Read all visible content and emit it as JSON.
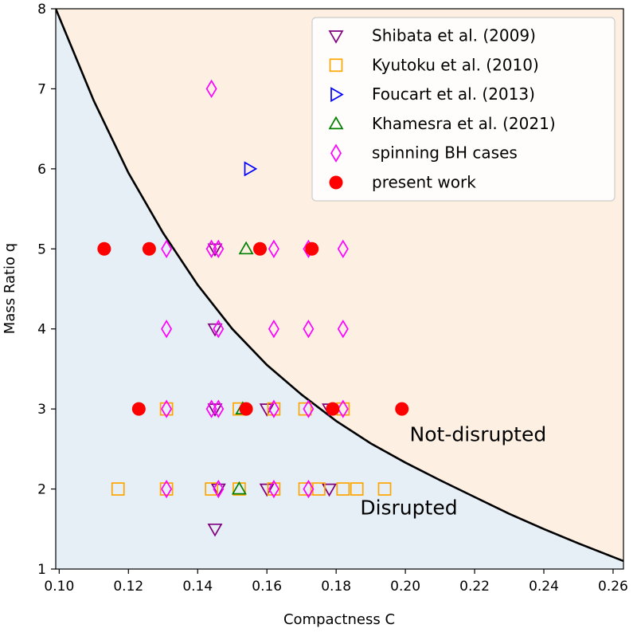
{
  "chart_data": {
    "type": "scatter",
    "xlabel": "Compactness C",
    "ylabel": "Mass Ratio q",
    "xlim": [
      0.099,
      0.263
    ],
    "ylim": [
      1,
      8
    ],
    "x_ticks": [
      0.1,
      0.12,
      0.14,
      0.16,
      0.18,
      0.2,
      0.22,
      0.24,
      0.26
    ],
    "x_tick_labels": [
      "0.10",
      "0.12",
      "0.14",
      "0.16",
      "0.18",
      "0.20",
      "0.22",
      "0.24",
      "0.26"
    ],
    "y_ticks": [
      1,
      2,
      3,
      4,
      5,
      6,
      7,
      8
    ],
    "y_tick_labels": [
      "1",
      "2",
      "3",
      "4",
      "5",
      "6",
      "7",
      "8"
    ],
    "grid": false,
    "legend_position": "top-right",
    "regions": [
      {
        "label": "Disrupted",
        "color": "#e6eef6",
        "side": "below",
        "label_at": [
          0.201,
          1.68
        ]
      },
      {
        "label": "Not-disrupted",
        "color": "#fdf0e3",
        "side": "above",
        "label_at": [
          0.221,
          2.6
        ]
      }
    ],
    "boundary_curve": {
      "color": "#000000",
      "points": [
        [
          0.099,
          8.0
        ],
        [
          0.11,
          6.85
        ],
        [
          0.12,
          5.95
        ],
        [
          0.13,
          5.2
        ],
        [
          0.14,
          4.55
        ],
        [
          0.15,
          4.0
        ],
        [
          0.16,
          3.55
        ],
        [
          0.17,
          3.18
        ],
        [
          0.18,
          2.85
        ],
        [
          0.19,
          2.57
        ],
        [
          0.2,
          2.33
        ],
        [
          0.21,
          2.11
        ],
        [
          0.22,
          1.9
        ],
        [
          0.23,
          1.69
        ],
        [
          0.24,
          1.5
        ],
        [
          0.25,
          1.32
        ],
        [
          0.263,
          1.1
        ]
      ]
    },
    "series": [
      {
        "name": "Shibata et al. (2009)",
        "marker": "triangle-down",
        "color": "#800080",
        "filled": false,
        "points": [
          [
            0.145,
            5
          ],
          [
            0.145,
            4
          ],
          [
            0.145,
            3
          ],
          [
            0.16,
            3
          ],
          [
            0.178,
            3
          ],
          [
            0.146,
            2
          ],
          [
            0.16,
            2
          ],
          [
            0.178,
            2
          ],
          [
            0.145,
            1.5
          ]
        ]
      },
      {
        "name": "Kyutoku et al. (2010)",
        "marker": "square",
        "color": "#ffa500",
        "filled": false,
        "points": [
          [
            0.131,
            3
          ],
          [
            0.152,
            3
          ],
          [
            0.162,
            3
          ],
          [
            0.171,
            3
          ],
          [
            0.182,
            3
          ],
          [
            0.117,
            2
          ],
          [
            0.131,
            2
          ],
          [
            0.144,
            2
          ],
          [
            0.152,
            2
          ],
          [
            0.162,
            2
          ],
          [
            0.171,
            2
          ],
          [
            0.175,
            2
          ],
          [
            0.182,
            2
          ],
          [
            0.186,
            2
          ],
          [
            0.194,
            2
          ]
        ]
      },
      {
        "name": "Foucart et al. (2013)",
        "marker": "triangle-right",
        "color": "#0000ff",
        "filled": false,
        "points": [
          [
            0.155,
            6
          ]
        ]
      },
      {
        "name": "Khamesra et al. (2021)",
        "marker": "triangle-up",
        "color": "#008000",
        "filled": false,
        "points": [
          [
            0.154,
            5
          ],
          [
            0.153,
            3
          ],
          [
            0.152,
            2
          ]
        ]
      },
      {
        "name": "spinning BH cases",
        "marker": "thin-diamond",
        "color": "#ff00ff",
        "filled": false,
        "points": [
          [
            0.144,
            7
          ],
          [
            0.131,
            5
          ],
          [
            0.144,
            5
          ],
          [
            0.146,
            5
          ],
          [
            0.162,
            5
          ],
          [
            0.172,
            5
          ],
          [
            0.182,
            5
          ],
          [
            0.131,
            4
          ],
          [
            0.146,
            4
          ],
          [
            0.162,
            4
          ],
          [
            0.172,
            4
          ],
          [
            0.182,
            4
          ],
          [
            0.131,
            3
          ],
          [
            0.144,
            3
          ],
          [
            0.146,
            3
          ],
          [
            0.162,
            3
          ],
          [
            0.172,
            3
          ],
          [
            0.182,
            3
          ],
          [
            0.131,
            2
          ],
          [
            0.146,
            2
          ],
          [
            0.162,
            2
          ],
          [
            0.172,
            2
          ]
        ]
      },
      {
        "name": "present work",
        "marker": "circle",
        "color": "#ff0000",
        "filled": true,
        "points": [
          [
            0.113,
            5
          ],
          [
            0.126,
            5
          ],
          [
            0.158,
            5
          ],
          [
            0.173,
            5
          ],
          [
            0.123,
            3
          ],
          [
            0.154,
            3
          ],
          [
            0.179,
            3
          ],
          [
            0.199,
            3
          ]
        ]
      }
    ]
  }
}
